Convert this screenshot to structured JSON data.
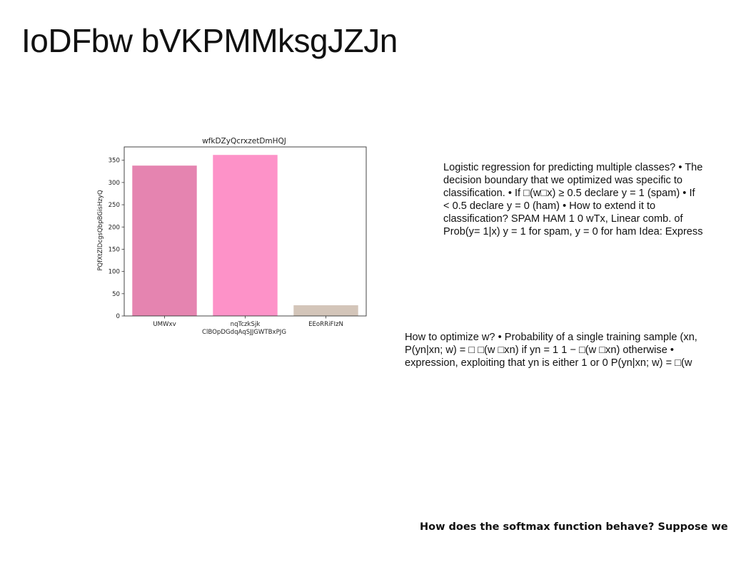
{
  "slide": {
    "title": "IoDFbw bVKPMMksgJZJn"
  },
  "text_blocks": {
    "block_a": [
      "Logistic regression for predicting multiple classes? • The",
      "decision boundary that we optimized was specific to",
      "classification. • If □(w□x) ≥ 0.5 declare y = 1 (spam) • If",
      "< 0.5 declare y = 0 (ham) • How to extend it to",
      "classification? SPAM HAM 1 0 wTx, Linear comb. of",
      "Prob(y= 1|x) y = 1 for spam, y = 0 for ham Idea: Express"
    ],
    "block_b": [
      "How to optimize w? • Probability of a single training sample (xn,",
      "P(yn|xn; w) = □ □(w □xn) if yn = 1 1 − □(w □xn) otherwise •",
      "expression, exploiting that yn is either 1 or 0 P(yn|xn; w) = □(w"
    ],
    "footer": "How does the softmax function behave? Suppose we"
  },
  "chart_data": {
    "type": "bar",
    "title": "wfkDZyQcrxzetDmHQJ",
    "xlabel": "ClBOpDGdqAqSJJGWTBxPJG",
    "ylabel": "PQfXtZlDcgsQbpBGisHzyQ",
    "categories": [
      "UMWxv",
      "nqTczkSjk",
      "EEoRRiFIzN"
    ],
    "values": [
      338,
      362,
      24
    ],
    "colors": [
      "#e584b0",
      "#fd92c8",
      "#d3c5b9"
    ],
    "ylim": [
      0,
      380
    ],
    "yticks": [
      0,
      50,
      100,
      150,
      200,
      250,
      300,
      350
    ],
    "grid": false
  }
}
